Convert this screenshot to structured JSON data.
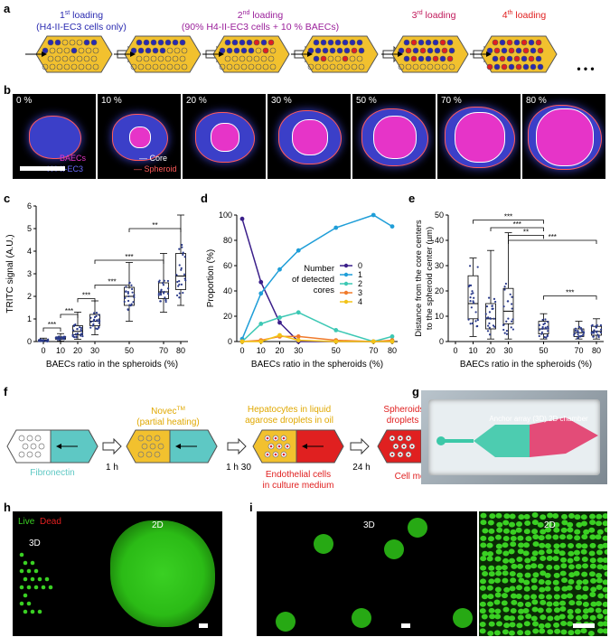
{
  "panels": {
    "a": "a",
    "b": "b",
    "c": "c",
    "d": "d",
    "e": "e",
    "f": "f",
    "g": "g",
    "h": "h",
    "i": "i"
  },
  "colors": {
    "chip": "#F2C12E",
    "blue": "#2A2AB0",
    "red": "#E02020",
    "purple": "#9A1F9A",
    "magenta": "#C0185A",
    "teal": "#5EC8C4"
  },
  "a": {
    "step1": {
      "ord": "1",
      "sup": "st",
      "rest": " loading",
      "sub": "(H4-II-EC3 cells only)"
    },
    "step2": {
      "ord": "2",
      "sup": "nd",
      "rest": " loading",
      "sub": "(90% H4-II-EC3 cells + 10 % BAECs)"
    },
    "step3": {
      "ord": "3",
      "sup": "rd",
      "rest": " loading"
    },
    "step4": {
      "ord": "4",
      "sup": "th",
      "rest": " loading"
    },
    "ellipsis": "• • •"
  },
  "b": {
    "tiles": [
      "0 %",
      "10 %",
      "20 %",
      "30 %",
      "50 %",
      "70 %",
      "80 %"
    ],
    "legend_baecs": "BAECs",
    "legend_h4": "H4-II-EC3",
    "legend_core": "Core",
    "legend_spheroid": "Spheroid"
  },
  "c": {
    "ylabel": "TRITC signal (A.U.)",
    "xlabel": "BAECs ratio in the spheroids (%)",
    "sig": [
      "***",
      "***",
      "***",
      "***",
      "***",
      "**"
    ]
  },
  "d": {
    "ylabel": "Proportion (%)",
    "xlabel": "BAECs ratio in the spheroids (%)",
    "legend_title": [
      "Number",
      "of detected",
      "cores"
    ]
  },
  "e": {
    "ylabel": [
      "Distance from the core centers",
      "to the spheroid center (µm)"
    ],
    "xlabel": "BAECs ratio in the spheroids (%)",
    "sig": [
      "***",
      "***",
      "**",
      "***",
      "***"
    ]
  },
  "f": {
    "fibronectin": "Fibronectin",
    "t1": "1 h",
    "novec": "Novec",
    "novec_sup": "TM",
    "novec_sub": "(partial heating)",
    "t2": "1 h 30",
    "hep1": "Hepatocytes in liquid",
    "hep2": "agarose droplets in oil",
    "endo1": "Endothelial cells",
    "endo2": "in culture medium",
    "t3": "24 h",
    "sph1": "Spheroids in gelated",
    "sph2": "droplets in medium",
    "mono": "Cell monolayer"
  },
  "g": {
    "label": "Anchor array (3D) 2D chamber"
  },
  "h": {
    "live": "Live",
    "dead": "Dead",
    "l3d": "3D",
    "l2d": "2D"
  },
  "i": {
    "l3d": "3D",
    "l2d": "2D"
  },
  "chart_data": [
    {
      "type": "box",
      "panel": "c",
      "categories": [
        "0",
        "10",
        "20",
        "30",
        "50",
        "70",
        "80"
      ],
      "ylim": [
        0,
        6
      ],
      "yticks": [
        0,
        1,
        2,
        3,
        4,
        5,
        6
      ],
      "xlabel": "BAECs ratio in the spheroids (%)",
      "ylabel": "TRITC signal (A.U.)",
      "series": [
        {
          "x": 0,
          "q1": 0.02,
          "median": 0.05,
          "q3": 0.08,
          "min": 0,
          "max": 0.15
        },
        {
          "x": 10,
          "q1": 0.1,
          "median": 0.15,
          "q3": 0.2,
          "min": 0.02,
          "max": 0.35
        },
        {
          "x": 20,
          "q1": 0.3,
          "median": 0.45,
          "q3": 0.7,
          "min": 0.1,
          "max": 1.3
        },
        {
          "x": 30,
          "q1": 0.7,
          "median": 0.9,
          "q3": 1.2,
          "min": 0.3,
          "max": 1.8
        },
        {
          "x": 50,
          "q1": 1.6,
          "median": 2.0,
          "q3": 2.4,
          "min": 0.9,
          "max": 3.5
        },
        {
          "x": 70,
          "q1": 1.9,
          "median": 2.2,
          "q3": 2.6,
          "min": 1.3,
          "max": 3.9
        },
        {
          "x": 80,
          "q1": 2.3,
          "median": 2.9,
          "q3": 3.9,
          "min": 1.6,
          "max": 5.6
        }
      ]
    },
    {
      "type": "line",
      "panel": "d",
      "x": [
        0,
        10,
        20,
        30,
        50,
        70,
        80
      ],
      "ylim": [
        0,
        100
      ],
      "yticks": [
        0,
        20,
        40,
        60,
        80,
        100
      ],
      "xlabel": "BAECs ratio in the spheroids (%)",
      "ylabel": "Proportion (%)",
      "series": [
        {
          "name": "0",
          "color": "#3B1F8A",
          "values": [
            97,
            47,
            15,
            0,
            0,
            0,
            0
          ]
        },
        {
          "name": "1",
          "color": "#1F9ED8",
          "values": [
            2,
            38,
            57,
            72,
            90,
            100,
            91
          ]
        },
        {
          "name": "2",
          "color": "#3CC8B4",
          "values": [
            0,
            14,
            19,
            23,
            9,
            0,
            4
          ]
        },
        {
          "name": "3",
          "color": "#F07A2A",
          "values": [
            0,
            1,
            4,
            4,
            1,
            0,
            1
          ]
        },
        {
          "name": "4",
          "color": "#F2C318",
          "values": [
            0,
            0,
            5,
            1,
            0,
            0,
            0
          ]
        }
      ]
    },
    {
      "type": "box",
      "panel": "e",
      "categories": [
        "0",
        "10",
        "20",
        "30",
        "50",
        "70",
        "80"
      ],
      "ylim": [
        0,
        50
      ],
      "yticks": [
        0,
        10,
        20,
        30,
        40,
        50
      ],
      "xlabel": "BAECs ratio in the spheroids (%)",
      "ylabel": "Distance from the core centers to the spheroid center (µm)",
      "series": [
        {
          "x": 10,
          "q1": 9,
          "median": 15,
          "q3": 26,
          "min": 2,
          "max": 33
        },
        {
          "x": 20,
          "q1": 5,
          "median": 9,
          "q3": 15,
          "min": 1,
          "max": 36
        },
        {
          "x": 30,
          "q1": 7,
          "median": 12,
          "q3": 21,
          "min": 1,
          "max": 43
        },
        {
          "x": 50,
          "q1": 3,
          "median": 5,
          "q3": 8,
          "min": 1,
          "max": 11
        },
        {
          "x": 70,
          "q1": 2,
          "median": 3.5,
          "q3": 5,
          "min": 1,
          "max": 8
        },
        {
          "x": 80,
          "q1": 2.5,
          "median": 4,
          "q3": 6,
          "min": 1,
          "max": 9
        }
      ]
    }
  ]
}
